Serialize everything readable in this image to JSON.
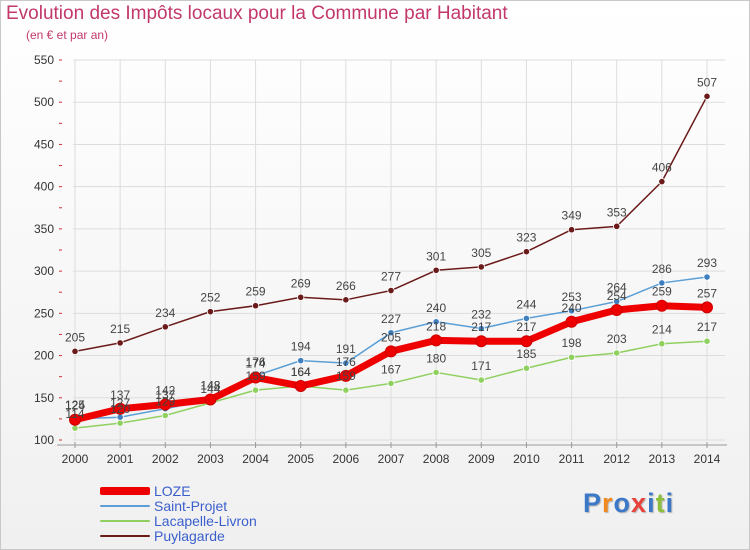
{
  "header": {
    "title": "Evolution des Impôts locaux pour la Commune par Habitant",
    "subtitle": "(en € et par an)"
  },
  "colors": {
    "title": "#c2386b",
    "legend_text": "#3a5fcd",
    "grid": "#dddddd",
    "axis_text": "#333333"
  },
  "logo": {
    "letters": [
      "P",
      "r",
      "o",
      "x",
      "i",
      "t",
      "i"
    ],
    "colors": [
      "#3c78c8",
      "#f08a1e",
      "#3c78c8",
      "#e8423c",
      "#3c78c8",
      "#8cbf3c",
      "#3c78c8"
    ]
  },
  "chart_data": {
    "type": "line",
    "title": "Evolution des Impôts locaux pour la Commune par Habitant",
    "xlabel": "",
    "ylabel": "(en € et par an)",
    "x": [
      2000,
      2001,
      2002,
      2003,
      2004,
      2005,
      2006,
      2007,
      2008,
      2009,
      2010,
      2011,
      2012,
      2013,
      2014
    ],
    "ylim": [
      100,
      550
    ],
    "yticks": [
      100,
      150,
      200,
      250,
      300,
      350,
      400,
      450,
      500,
      550
    ],
    "grid": true,
    "legend_position": "bottom-left",
    "series": [
      {
        "name": "Puylagarde",
        "color": "#6b1a1a",
        "width": 1.5,
        "marker_fill": "#6b1a1a",
        "values": [
          205,
          215,
          234,
          252,
          259,
          269,
          266,
          277,
          301,
          305,
          323,
          349,
          353,
          406,
          507
        ]
      },
      {
        "name": "Lacapelle-Livron",
        "color": "#90d060",
        "width": 1.5,
        "marker_fill": "#90d060",
        "values": [
          114,
          120,
          129,
          144,
          159,
          164,
          159,
          167,
          180,
          171,
          185,
          198,
          203,
          214,
          217
        ]
      },
      {
        "name": "Saint-Projet",
        "color": "#5b9fd6",
        "width": 1.5,
        "marker_fill": "#3f7fc0",
        "values": [
          125,
          127,
          137,
          148,
          176,
          194,
          191,
          227,
          240,
          232,
          244,
          253,
          264,
          286,
          293
        ]
      },
      {
        "name": "LOZE",
        "color": "#ee0000",
        "width": 7,
        "marker_fill": "#ee0000",
        "values": [
          124,
          137,
          142,
          148,
          174,
          164,
          176,
          205,
          218,
          217,
          217,
          240,
          254,
          259,
          257
        ]
      }
    ]
  }
}
